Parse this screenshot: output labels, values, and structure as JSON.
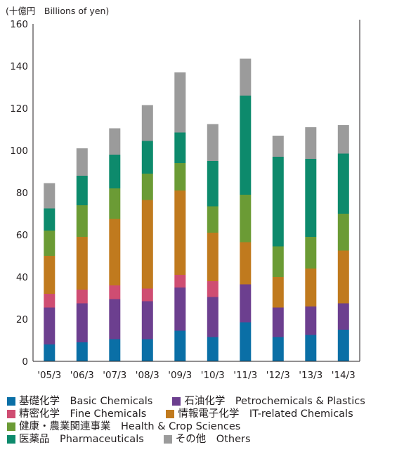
{
  "chart_data": {
    "type": "bar",
    "stacked": true,
    "unit_label": "(十億円　Billions of yen)",
    "categories": [
      "'05/3",
      "'06/3",
      "'07/3",
      "'08/3",
      "'09/3",
      "'10/3",
      "'11/3",
      "'12/3",
      "'13/3",
      "'14/3"
    ],
    "ylim": [
      0,
      160
    ],
    "yticks": [
      0,
      20,
      40,
      60,
      80,
      100,
      120,
      140,
      160
    ],
    "grid": false,
    "legend_position": "bottom",
    "series": [
      {
        "name": "基礎化学　Basic Chemicals",
        "color": "#0a6fa6",
        "values": [
          8,
          9,
          10.5,
          10.5,
          14.5,
          11.5,
          18.5,
          11.5,
          12.5,
          15
        ]
      },
      {
        "name": "石油化学　Petrochemicals & Plastics",
        "color": "#6c3f8f",
        "values": [
          17.5,
          18.5,
          19,
          18,
          20.5,
          19,
          18,
          14,
          13.5,
          12.5
        ]
      },
      {
        "name": "精密化学　Fine Chemicals",
        "color": "#cf4d72",
        "values": [
          6.5,
          6.5,
          6.5,
          6,
          6,
          7.5,
          0,
          0,
          0,
          0
        ]
      },
      {
        "name": "情報電子化学　IT-related Chemicals",
        "color": "#c07a1e",
        "values": [
          18,
          25,
          31.5,
          42,
          40,
          23,
          20,
          14.5,
          18,
          25
        ]
      },
      {
        "name": "健康・農業関連事業　Health & Crop Sciences",
        "color": "#6b9b35",
        "values": [
          12,
          15,
          14.5,
          12.5,
          13,
          12.5,
          22.5,
          14.5,
          15,
          17.5
        ]
      },
      {
        "name": "医薬品　Pharmaceuticals",
        "color": "#0d8a6c",
        "values": [
          10.5,
          14,
          16,
          15.5,
          14.5,
          21.5,
          47,
          42.5,
          37,
          28.5
        ]
      },
      {
        "name": "その他　Others",
        "color": "#9b9b9b",
        "values": [
          12,
          13,
          12.5,
          17,
          28.5,
          17.5,
          17.5,
          10,
          15,
          13.5
        ]
      }
    ]
  },
  "legend": {
    "rows": [
      [
        {
          "series": 0,
          "label": "基礎化学　Basic Chemicals"
        },
        {
          "series": 1,
          "label": "石油化学　Petrochemicals & Plastics"
        }
      ],
      [
        {
          "series": 2,
          "label": "精密化学　Fine Chemicals"
        },
        {
          "series": 3,
          "label": "情報電子化学　IT-related Chemicals"
        }
      ],
      [
        {
          "series": 4,
          "label": "健康・農業関連事業　Health & Crop Sciences"
        }
      ],
      [
        {
          "series": 5,
          "label": "医薬品　Pharmaceuticals"
        },
        {
          "series": 6,
          "label": "その他　Others"
        }
      ]
    ]
  }
}
